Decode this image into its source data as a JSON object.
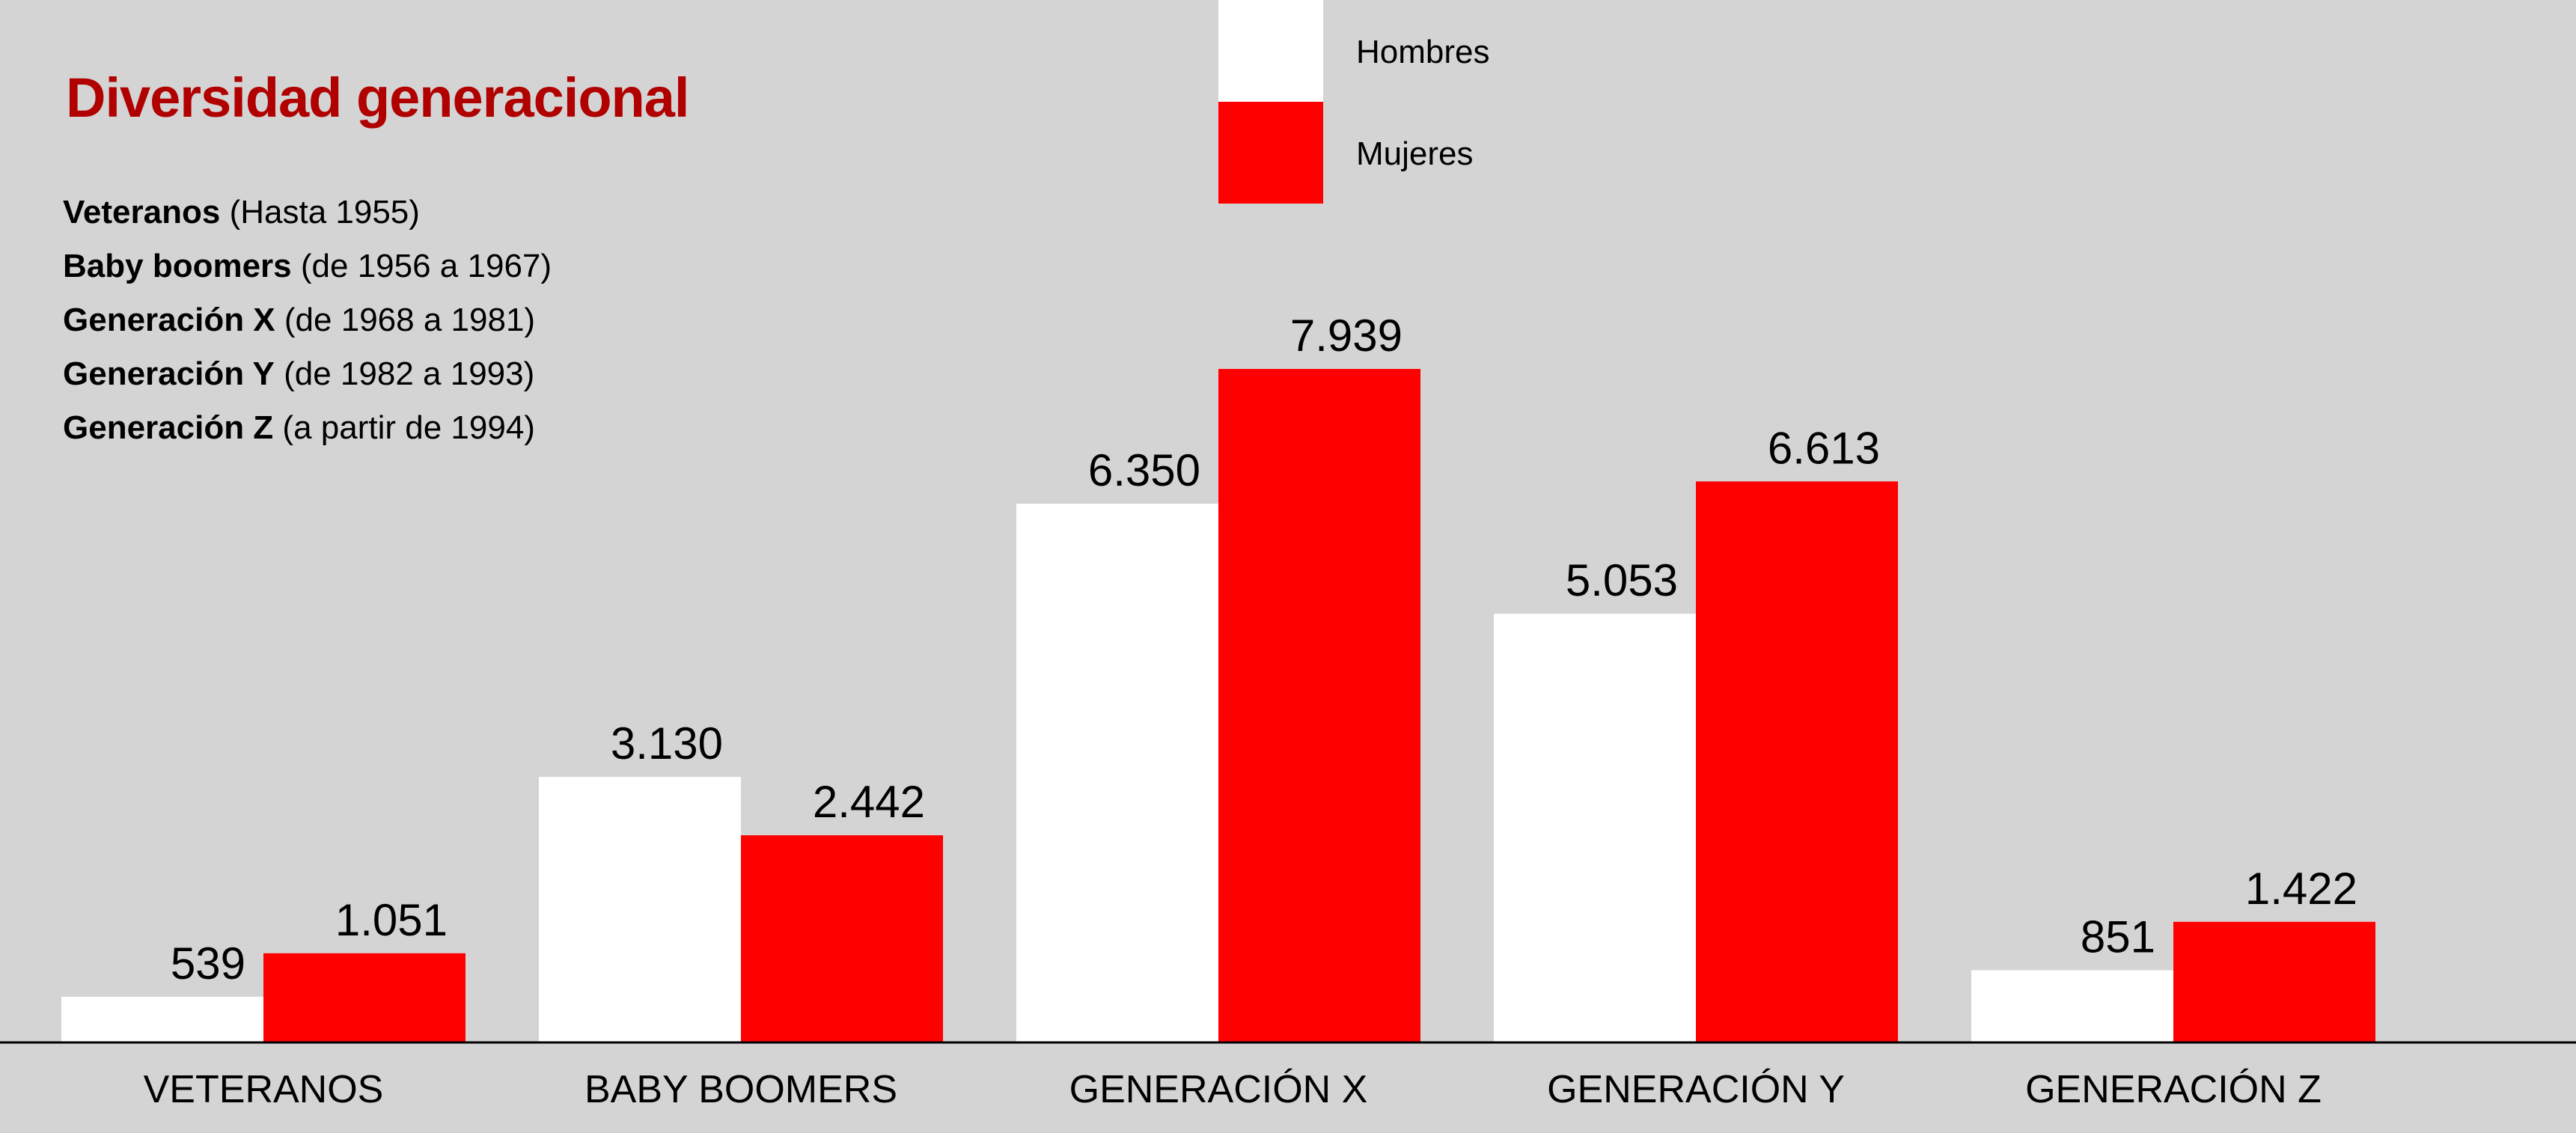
{
  "title": "Diversidad generacional",
  "generations": [
    {
      "name": "Veteranos",
      "range": "(Hasta 1955)"
    },
    {
      "name": "Baby boomers",
      "range": "(de 1956 a 1967)"
    },
    {
      "name": "Generación X",
      "range": "(de 1968 a 1981)"
    },
    {
      "name": "Generación Y",
      "range": "(de 1982 a 1993)"
    },
    {
      "name": "Generación Z",
      "range": "(a partir de 1994)"
    }
  ],
  "colors": {
    "hombres": "#ffffff",
    "mujeres": "#ff0000",
    "title": "#b00000",
    "background": "#d4d4d4"
  },
  "chart_data": {
    "type": "bar",
    "categories": [
      "VETERANOS",
      "BABY BOOMERS",
      "GENERACIÓN X",
      "GENERACIÓN Y",
      "GENERACIÓN Z"
    ],
    "series": [
      {
        "name": "Hombres",
        "values": [
          539,
          3130,
          6350,
          5053,
          851
        ],
        "labels": [
          "539",
          "3.130",
          "6.350",
          "5.053",
          "851"
        ],
        "color": "#ffffff"
      },
      {
        "name": "Mujeres",
        "values": [
          1051,
          2442,
          7939,
          6613,
          1422
        ],
        "labels": [
          "1.051",
          "2.442",
          "7.939",
          "6.613",
          "1.422"
        ],
        "color": "#ff0000"
      }
    ],
    "legend": "top-center",
    "grid": false,
    "ylim": [
      0,
      7939
    ]
  }
}
